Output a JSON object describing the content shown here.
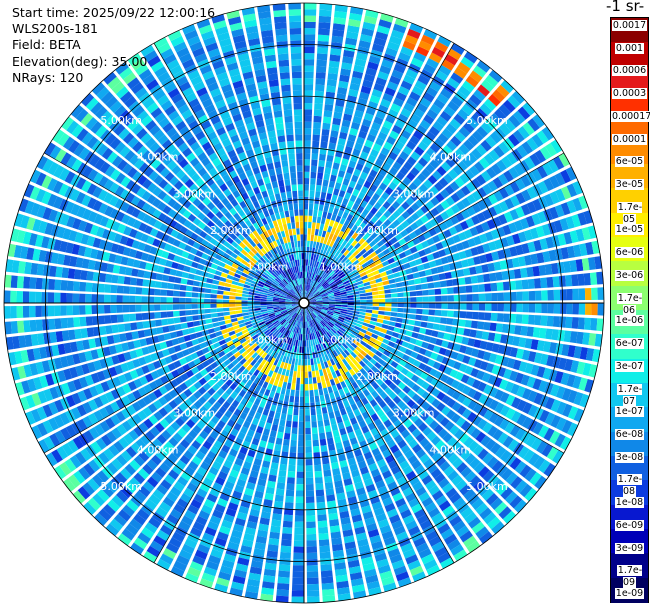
{
  "header": {
    "start_time": "Start time: 2025/09/22 12:00:16",
    "instrument": "WLS200s-181",
    "field": "Field: BETA",
    "elevation": "Elevation(deg): 35.00",
    "nrays": "NRays: 120"
  },
  "colorbar": {
    "title": "-1 sr-",
    "tick_labels": [
      "0.0017",
      "0.001",
      "0.0006",
      "0.0003",
      "0.00017",
      "0.0001",
      "6e-05",
      "3e-05",
      "1.7e-05",
      "1e-05",
      "6e-06",
      "3e-06",
      "1.7e-06",
      "1e-06",
      "6e-07",
      "3e-07",
      "1.7e-07",
      "1e-07",
      "6e-08",
      "3e-08",
      "1.7e-08",
      "1e-08",
      "6e-09",
      "3e-09",
      "1.7e-09",
      "1e-09"
    ],
    "colors": [
      "#8b0000",
      "#c00000",
      "#e41a1c",
      "#ff3000",
      "#ff6a00",
      "#ff8c00",
      "#ffb000",
      "#ffd000",
      "#ffee00",
      "#e6ff10",
      "#b8ff40",
      "#8cff70",
      "#5cffa0",
      "#30ffcc",
      "#10eee8",
      "#10c8f0",
      "#10a8f0",
      "#1088e8",
      "#1060e0",
      "#0c3ce0",
      "#0818d0",
      "#0000b8",
      "#00008a",
      "#000060"
    ]
  },
  "chart_data": {
    "type": "heatmap",
    "projection": "polar PPI",
    "n_rays": 120,
    "range_rings_km": [
      1.0,
      2.0,
      3.0,
      4.0,
      5.0
    ],
    "max_range_km": 5.8,
    "range_ring_labels": [
      "1.00km",
      "2.00km",
      "3.00km",
      "4.00km",
      "5.00km"
    ],
    "grid": true,
    "value_scale": "log",
    "value_range": [
      1e-09,
      0.0017
    ],
    "features": [
      {
        "name": "enhanced ring",
        "range_km": [
          1.2,
          1.7
        ],
        "value": 1.7e-05
      },
      {
        "name": "far echo north-east",
        "range_km": [
          5.3,
          5.65
        ],
        "azimuth_deg": [
          20,
          45
        ],
        "value": 0.0003
      },
      {
        "name": "far echo east",
        "range_km": [
          5.4,
          5.7
        ],
        "azimuth_deg": [
          86,
          93
        ],
        "value": 3e-05
      },
      {
        "name": "background",
        "value": 6e-08
      }
    ]
  }
}
